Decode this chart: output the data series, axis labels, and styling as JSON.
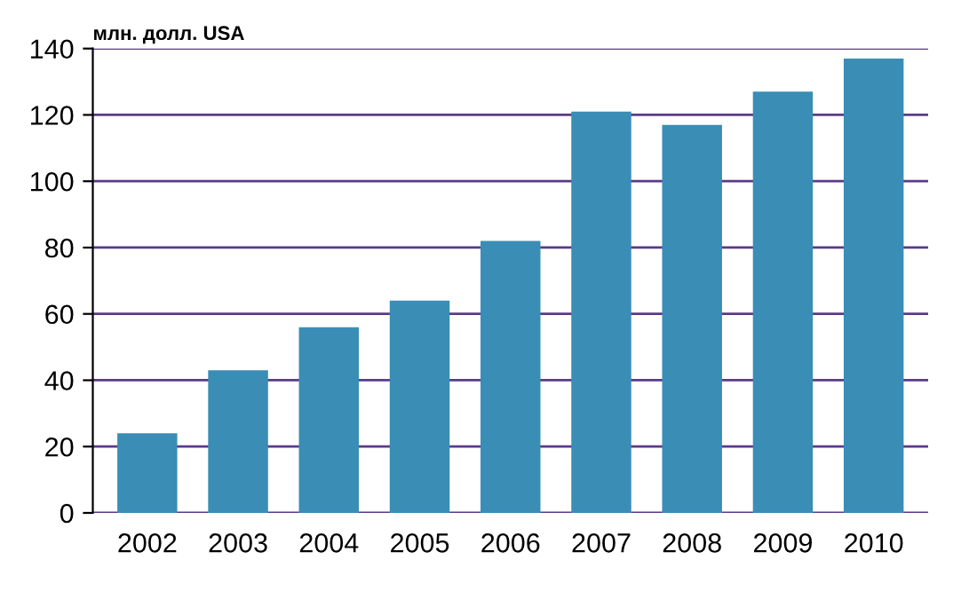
{
  "chart_data": {
    "type": "bar",
    "ylabel": "млн. долл. USA",
    "categories": [
      "2002",
      "2003",
      "2004",
      "2005",
      "2006",
      "2007",
      "2008",
      "2009",
      "2010"
    ],
    "values": [
      24,
      43,
      56,
      64,
      82,
      121,
      117,
      127,
      137
    ],
    "color": "#3a8db5",
    "ylim": [
      0,
      140
    ],
    "yticks": [
      0,
      20,
      40,
      60,
      80,
      100,
      120,
      140
    ],
    "grid": "y"
  }
}
